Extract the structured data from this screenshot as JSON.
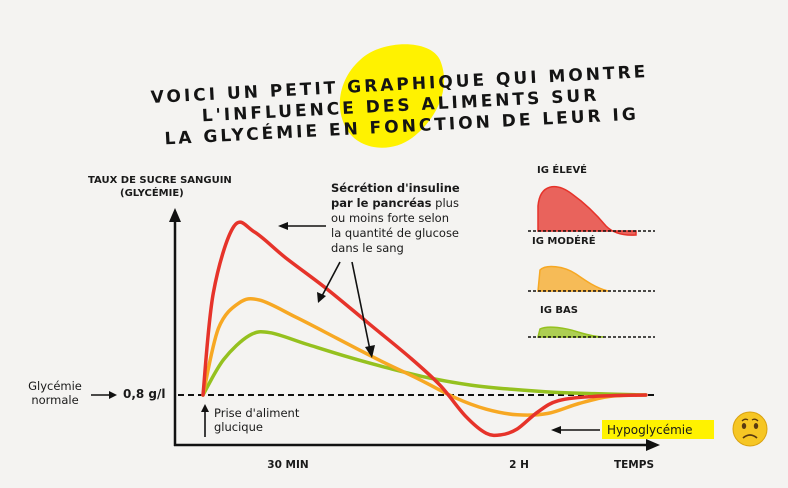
{
  "colors": {
    "high": "#e6332a",
    "moderate": "#f7a823",
    "low": "#95c11f",
    "highlight": "#fff200",
    "background": "#f4f3f1"
  },
  "title": {
    "line1": "VOICI UN PETIT GRAPHIQUE QUI MONTRE",
    "line2": "L'INFLUENCE DES ALIMENTS SUR",
    "line3": "LA GLYCÉMIE EN FONCTION DE LEUR IG"
  },
  "annotations": {
    "insulin_bold_1": "Sécrétion d'insuline",
    "insulin_bold_2": "par le pancréas",
    "insulin_rest_1": " plus",
    "insulin_line_3": "ou moins forte selon",
    "insulin_line_4": "la quantité de glucose",
    "insulin_line_5": "dans le sang",
    "meal_line_1": "Prise d'aliment",
    "meal_line_2": "glucique",
    "normal_line_1": "Glycémie",
    "normal_line_2": "normale",
    "hypoglycemia": "Hypoglycémie",
    "sad_face_icon": "sad-face-emoji-icon"
  },
  "chart_data": {
    "type": "line",
    "ylabel_line1": "TAUX DE SUCRE SANGUIN",
    "ylabel_line2": "(GLYCÉMIE)",
    "xlabel": "TEMPS",
    "x_ticks": [
      "30 MIN",
      "2 H"
    ],
    "y_ticks": [
      "0,8 g/l"
    ],
    "reference_level": 0.8,
    "series": [
      {
        "key": "high",
        "color": "#e6332a",
        "points": [
          [
            0,
            0.8
          ],
          [
            10,
            1.52
          ],
          [
            30,
            1.99
          ],
          [
            50,
            1.95
          ],
          [
            80,
            1.77
          ],
          [
            120,
            1.55
          ],
          [
            160,
            1.31
          ],
          [
            200,
            1.07
          ],
          [
            230,
            0.87
          ],
          [
            255,
            0.65
          ],
          [
            275,
            0.53
          ],
          [
            290,
            0.52
          ],
          [
            305,
            0.56
          ],
          [
            325,
            0.68
          ],
          [
            345,
            0.76
          ],
          [
            380,
            0.79
          ],
          [
            430,
            0.8
          ]
        ]
      },
      {
        "key": "moderate",
        "color": "#f7a823",
        "points": [
          [
            0,
            0.8
          ],
          [
            15,
            1.27
          ],
          [
            35,
            1.45
          ],
          [
            55,
            1.47
          ],
          [
            90,
            1.35
          ],
          [
            130,
            1.2
          ],
          [
            170,
            1.05
          ],
          [
            210,
            0.91
          ],
          [
            245,
            0.78
          ],
          [
            275,
            0.7
          ],
          [
            305,
            0.66
          ],
          [
            335,
            0.67
          ],
          [
            365,
            0.74
          ],
          [
            395,
            0.79
          ],
          [
            430,
            0.8
          ]
        ]
      },
      {
        "key": "low",
        "color": "#95c11f",
        "points": [
          [
            0,
            0.8
          ],
          [
            20,
            1.05
          ],
          [
            45,
            1.22
          ],
          [
            65,
            1.24
          ],
          [
            100,
            1.16
          ],
          [
            140,
            1.07
          ],
          [
            180,
            0.99
          ],
          [
            220,
            0.92
          ],
          [
            260,
            0.87
          ],
          [
            300,
            0.84
          ],
          [
            340,
            0.82
          ],
          [
            380,
            0.81
          ],
          [
            430,
            0.8
          ]
        ]
      }
    ],
    "legend": [
      {
        "key": "high",
        "label": "IG ÉLEVÉ"
      },
      {
        "key": "moderate",
        "label": "IG MODÉRÉ"
      },
      {
        "key": "low",
        "label": "IG BAS"
      }
    ]
  }
}
